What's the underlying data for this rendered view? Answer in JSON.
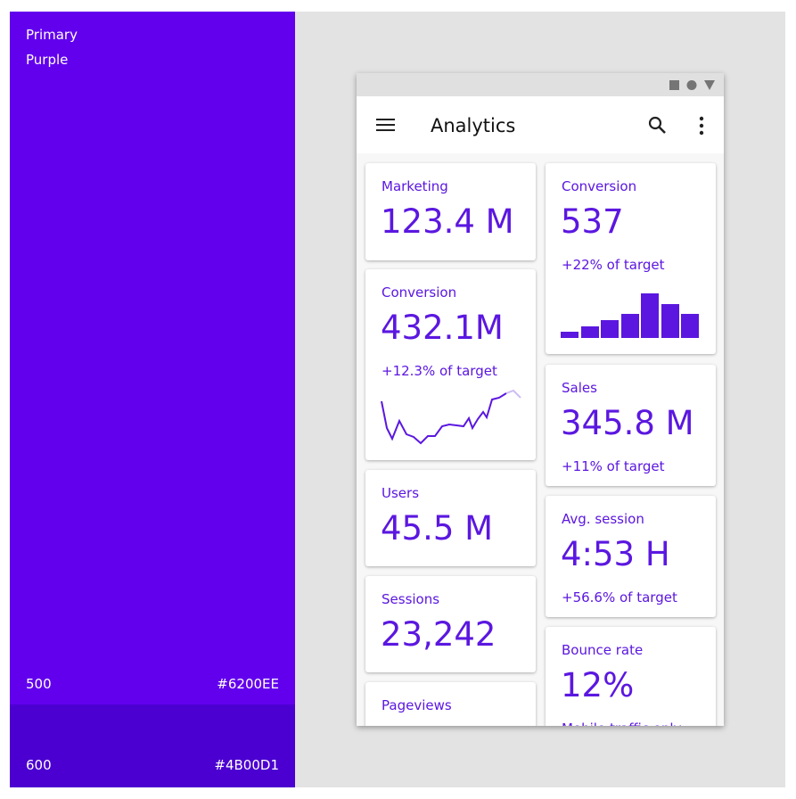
{
  "swatch": {
    "title": "Primary",
    "subtitle": "Purple",
    "shades": [
      {
        "name": "500",
        "hex": "#6200EE"
      },
      {
        "name": "600",
        "hex": "#4B00D1"
      }
    ]
  },
  "app": {
    "title": "Analytics",
    "cards": [
      {
        "label": "Marketing",
        "value": "123.4 M"
      },
      {
        "label": "Conversion",
        "value": "432.1M",
        "note": "+12.3% of target"
      },
      {
        "label": "Users",
        "value": "45.5 M"
      },
      {
        "label": "Sessions",
        "value": "23,242"
      },
      {
        "label": "Pageviews"
      },
      {
        "label": "Conversion",
        "value": "537",
        "note": "+22% of target"
      },
      {
        "label": "Sales",
        "value": "345.8 M",
        "note": "+11% of target"
      },
      {
        "label": "Avg. session",
        "value": "4:53 H",
        "note": "+56.6% of target"
      },
      {
        "label": "Bounce rate",
        "value": "12%",
        "note": "Mobile traffic only"
      }
    ]
  }
}
